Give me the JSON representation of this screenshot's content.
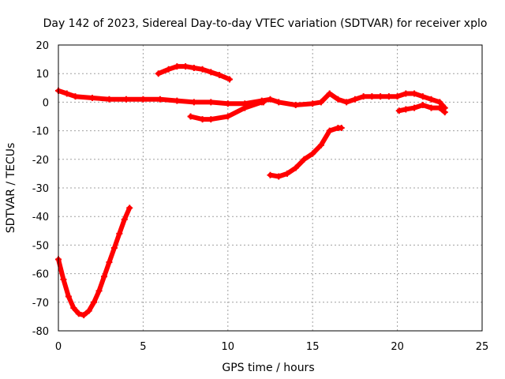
{
  "chart_data": {
    "type": "scatter",
    "title": "Day 142 of 2023, Sidereal Day-to-day VTEC variation (SDTVAR) for receiver xplo",
    "xlabel": "GPS time / hours",
    "ylabel": "SDTVAR / TECUs",
    "xlim": [
      0,
      25
    ],
    "ylim": [
      -80,
      20
    ],
    "xticks": [
      "0",
      "5",
      "10",
      "15",
      "20",
      "25"
    ],
    "yticks": [
      "20",
      "10",
      "0",
      "-10",
      "-20",
      "-30",
      "-40",
      "-50",
      "-60",
      "-70",
      "-80"
    ],
    "grid": true,
    "series_color": "#ff0000",
    "series": [
      {
        "name": "main-trace",
        "x": [
          0,
          0.5,
          1,
          2,
          3,
          4,
          5,
          6,
          7,
          8,
          9,
          10,
          11,
          12,
          12.5,
          13,
          14,
          15,
          15.5,
          16,
          16.5,
          17,
          17.5,
          18,
          18.5,
          19,
          19.5,
          20,
          20.5,
          21,
          21.5,
          22,
          22.5,
          22.8
        ],
        "y": [
          4,
          3,
          2,
          1.5,
          1,
          1,
          1,
          1,
          0.5,
          0,
          0,
          -0.5,
          -0.5,
          0.5,
          1,
          0,
          -1,
          -0.5,
          0,
          3,
          1,
          0,
          1,
          2,
          2,
          2,
          2,
          2,
          3,
          3,
          2,
          1,
          0,
          -2
        ]
      },
      {
        "name": "arc-upper",
        "x": [
          5.9,
          6.5,
          7,
          7.5,
          8,
          8.5,
          9,
          9.5,
          10.1
        ],
        "y": [
          10,
          11.5,
          12.5,
          12.5,
          12,
          11.5,
          10.5,
          9.5,
          8
        ]
      },
      {
        "name": "trace-negative",
        "x": [
          7.8,
          8.5,
          9,
          10,
          11,
          12,
          12.1
        ],
        "y": [
          -5,
          -6,
          -6,
          -5,
          -2,
          0,
          0
        ]
      },
      {
        "name": "rise-branch",
        "x": [
          12.5,
          13,
          13.5,
          14,
          14.5,
          15,
          15.5,
          16,
          16.5,
          16.7
        ],
        "y": [
          -25.5,
          -26,
          -25,
          -23,
          -20,
          -18,
          -15,
          -10,
          -9,
          -9
        ]
      },
      {
        "name": "valley",
        "x": [
          0,
          0.3,
          0.6,
          0.9,
          1.2,
          1.5,
          1.8,
          2.1,
          2.4,
          2.7,
          3,
          3.3,
          3.6,
          3.9,
          4.2
        ],
        "y": [
          -55,
          -62,
          -68,
          -72,
          -74,
          -74.5,
          -73,
          -70,
          -66,
          -61,
          -56,
          -51,
          -46,
          -41,
          -37
        ]
      },
      {
        "name": "late-branch",
        "x": [
          20.1,
          20.5,
          21,
          21.5,
          22,
          22.5,
          22.8
        ],
        "y": [
          -3,
          -2.5,
          -2,
          -1,
          -2,
          -2,
          -3.5
        ]
      }
    ]
  }
}
